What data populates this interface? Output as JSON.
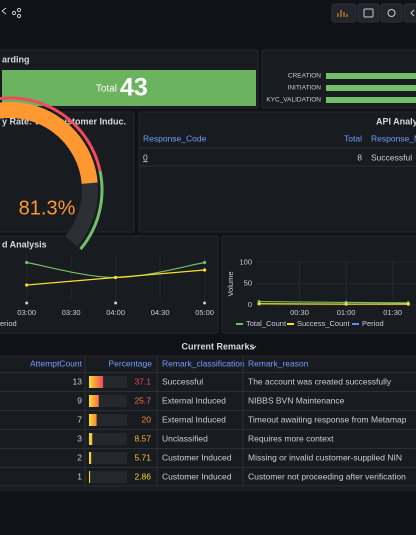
{
  "panels": {
    "onboarding": {
      "title": "arding",
      "stat_label": "Total",
      "stat_value": 43
    },
    "stages": {
      "labels": [
        "CREATION",
        "INITIATION",
        "KYC_VALIDATION"
      ]
    },
    "success_rate": {
      "title": "y Rate: WO. Customer Induc.",
      "value": 81.3,
      "value_label": "81.3%",
      "range": [
        0,
        100
      ]
    },
    "api": {
      "title": "API Analytic",
      "columns": [
        "Response_Code",
        "Total",
        "Response_M"
      ],
      "rows": [
        [
          0,
          8,
          "Successful"
        ]
      ]
    },
    "trend": {
      "title": "d Analysis",
      "x": [
        180,
        240,
        300
      ],
      "xlim": [
        162,
        305
      ],
      "xticks": [
        {
          "value": 180,
          "label": "03:00"
        },
        {
          "value": 210,
          "label": "03:30"
        },
        {
          "value": 240,
          "label": "04:00"
        },
        {
          "value": 270,
          "label": "04:30"
        },
        {
          "value": 300,
          "label": "05:00"
        }
      ],
      "ylim": [
        0,
        12
      ],
      "series": [
        {
          "color": "#73bf69",
          "values": [
            10,
            6,
            10
          ]
        },
        {
          "color": "#fade2a",
          "values": [
            4,
            6,
            8
          ]
        }
      ],
      "legend": "eriod"
    },
    "volume": {
      "y_label": "Volume",
      "x": [
        4,
        60,
        100
      ],
      "xlim": [
        2,
        105
      ],
      "xticks": [
        {
          "value": 30,
          "label": "00:30"
        },
        {
          "value": 60,
          "label": "01:00"
        },
        {
          "value": 90,
          "label": "01:30"
        }
      ],
      "ylim": [
        0,
        110
      ],
      "yticks": [
        0,
        50,
        100
      ],
      "series": [
        {
          "name": "Total_Count",
          "color": "#73bf69",
          "values": [
            8,
            6,
            5
          ]
        },
        {
          "name": "Success_Count",
          "color": "#fade2a",
          "values": [
            3,
            2,
            2
          ]
        },
        {
          "name": "Period",
          "color": "#5794f2"
        }
      ]
    }
  },
  "remarks": {
    "title": "Current Remarks",
    "columns": [
      "AttemptCount",
      "Percentage",
      "Remark_classification",
      "Remark_reason"
    ],
    "bar_range": [
      0,
      100
    ],
    "rows": [
      {
        "count": 13,
        "percentage": 37.1,
        "classification": "Successful",
        "reason": "The account was created successfully"
      },
      {
        "count": 9,
        "percentage": 25.7,
        "classification": "External Induced",
        "reason": "NIBBS BVN Maintenance"
      },
      {
        "count": 7,
        "percentage": 20,
        "classification": "External Induced",
        "reason": "Timeout awaiting response from Metamap"
      },
      {
        "count": 3,
        "percentage": 8.57,
        "classification": "Unclassified",
        "reason": "Requires more context"
      },
      {
        "count": 2,
        "percentage": 5.71,
        "classification": "Customer Induced",
        "reason": "Missing or invalid customer-supplied NIN"
      },
      {
        "count": 1,
        "percentage": 2.86,
        "classification": "Customer Induced",
        "reason": "Customer not proceeding after verification"
      }
    ]
  }
}
